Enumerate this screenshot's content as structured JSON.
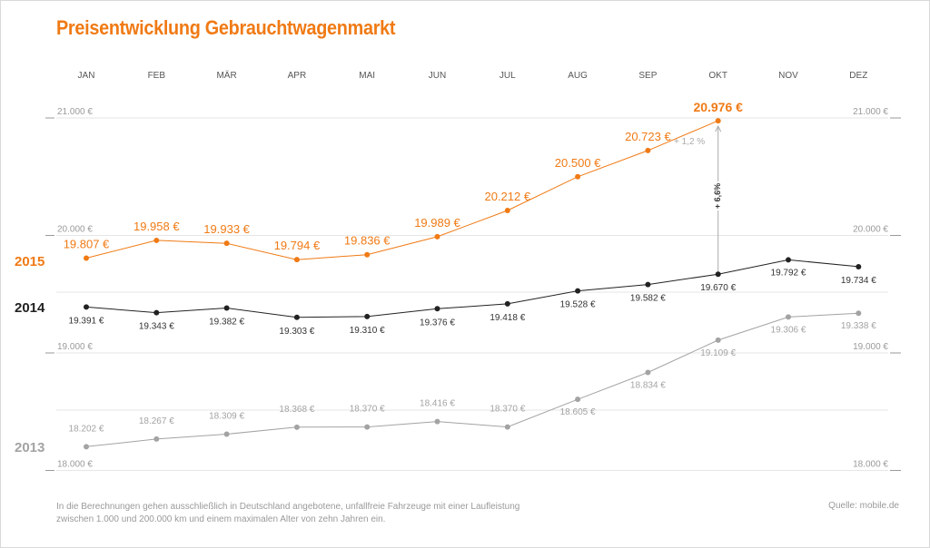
{
  "title": "Preisentwicklung Gebrauchtwagenmarkt",
  "footnote": "In die Berechnungen gehen ausschließlich in Deutschland angebotene, unfallfreie Fahrzeuge mit einer Laufleistung zwischen 1.000 und 200.000 km und einem maximalen Alter von zehn Jahren ein.",
  "source": "Quelle: mobile.de",
  "colors": {
    "s2015": "#f07a14",
    "s2014": "#222222",
    "s2013": "#a3a3a3",
    "grid": "#e6e6e6",
    "axis": "#9a9a9a"
  },
  "chart_data": {
    "type": "line",
    "title": "Preisentwicklung Gebrauchtwagenmarkt",
    "categories": [
      "JAN",
      "FEB",
      "MÄR",
      "APR",
      "MAI",
      "JUN",
      "JUL",
      "AUG",
      "SEP",
      "OKT",
      "NOV",
      "DEZ"
    ],
    "grid": true,
    "y_ticks": [
      "21.000 €",
      "20.000 €",
      "19.000 €",
      "18.000 €"
    ],
    "series": [
      {
        "name": "2015",
        "color": "#f07a14",
        "values": [
          19807,
          19958,
          19933,
          19794,
          19836,
          19989,
          20212,
          20500,
          20723,
          20976,
          null,
          null
        ],
        "labels": [
          "19.807 €",
          "19.958 €",
          "19.933 €",
          "19.794 €",
          "19.836 €",
          "19.989 €",
          "20.212 €",
          "20.500 €",
          "20.723 €",
          "20.976 €",
          null,
          null
        ]
      },
      {
        "name": "2014",
        "color": "#222222",
        "values": [
          19391,
          19343,
          19382,
          19303,
          19310,
          19376,
          19418,
          19528,
          19582,
          19670,
          19792,
          19734
        ],
        "labels": [
          "19.391 €",
          "19.343 €",
          "19.382 €",
          "19.303 €",
          "19.310 €",
          "19.376 €",
          "19.418 €",
          "19.528 €",
          "19.582 €",
          "19.670 €",
          "19.792 €",
          "19.734 €"
        ]
      },
      {
        "name": "2013",
        "color": "#a3a3a3",
        "values": [
          18202,
          18267,
          18309,
          18368,
          18370,
          18416,
          18370,
          18605,
          18834,
          19109,
          19306,
          19338
        ],
        "labels": [
          "18.202 €",
          "18.267 €",
          "18.309 €",
          "18.368 €",
          "18.370 €",
          "18.416 €",
          "18.370 €",
          "18.605 €",
          "18.834 €",
          "19.109 €",
          "19.306 €",
          "19.338 €"
        ]
      }
    ],
    "annotations": [
      {
        "text": "+ 1,2 %"
      },
      {
        "text": "+ 6,6%"
      }
    ]
  }
}
